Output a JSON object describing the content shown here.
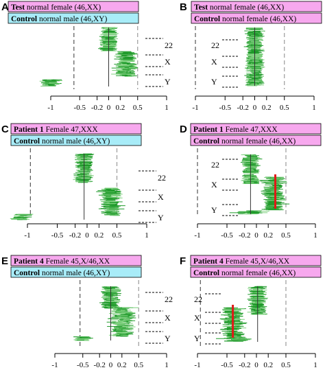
{
  "colors": {
    "pink": "#f7a8ee",
    "cyan": "#a8ecf8",
    "green": "#1f9a2a",
    "green_light": "#7fd07f",
    "red": "#e01818",
    "dash_grey": "#9a9a9a",
    "ink": "#000000"
  },
  "panels": [
    {
      "letter": "A",
      "legend_test_bold": "Test",
      "legend_test_rest": "normal female (46,XX)",
      "legend_ctrl_bold": "Control",
      "legend_ctrl_rest": "normal male (46,XY)",
      "ctrl_color": "cyan",
      "labels": [
        "22",
        "X",
        "Y"
      ],
      "ticks": [
        "-1",
        "-0.5",
        "-0.2",
        "0",
        "0.2",
        "0.5",
        "1"
      ]
    },
    {
      "letter": "B",
      "legend_test_bold": "Test",
      "legend_test_rest": "normal female (46,XX)",
      "legend_ctrl_bold": "Control",
      "legend_ctrl_rest": "normal female (46,XX)",
      "ctrl_color": "pink",
      "labels": [
        "22",
        "X",
        "Y"
      ],
      "ticks": [
        "-1",
        "-0.5",
        "-0.2",
        "0",
        "0.2",
        "0.5",
        "1"
      ]
    },
    {
      "letter": "C",
      "legend_test_bold": "Patient 1",
      "legend_test_rest": "Female 47,XXX",
      "legend_ctrl_bold": "Control",
      "legend_ctrl_rest": "normal male (46,XY)",
      "ctrl_color": "cyan",
      "labels": [
        "22",
        "X",
        "Y"
      ],
      "ticks": [
        "-1",
        "-0.5",
        "-0.2",
        "0",
        "0.2",
        "0.5",
        "1"
      ]
    },
    {
      "letter": "D",
      "legend_test_bold": "Patient 1",
      "legend_test_rest": "Female 47,XXX",
      "legend_ctrl_bold": "Control",
      "legend_ctrl_rest": "normal female (46,XX)",
      "ctrl_color": "pink",
      "labels": [
        "22",
        "X",
        "Y"
      ],
      "ticks": [
        "-1",
        "-0.5",
        "-0.2",
        "0",
        "0.2",
        "0.5",
        "1"
      ]
    },
    {
      "letter": "E",
      "legend_test_bold": "Patient 4",
      "legend_test_rest": "Female 45,X/46,XX",
      "legend_ctrl_bold": "Control",
      "legend_ctrl_rest": "normal male (46,XY)",
      "ctrl_color": "cyan",
      "labels": [
        "22",
        "X",
        "Y"
      ],
      "ticks": [
        "-1",
        "-0.5",
        "-0.2",
        "0",
        "0.2",
        "0.5",
        "1"
      ]
    },
    {
      "letter": "F",
      "legend_test_bold": "Patient 4",
      "legend_test_rest": "Female 45,X/46,XX",
      "legend_ctrl_bold": "Control",
      "legend_ctrl_rest": "normal female (46,XX)",
      "ctrl_color": "pink",
      "labels": [
        "22",
        "X",
        "Y"
      ],
      "ticks": [
        "-1",
        "-0.5",
        "-0.2",
        "0",
        "0.2",
        "0.5",
        "1"
      ]
    }
  ],
  "chart_data": [
    {
      "panel": "A",
      "type": "scatter",
      "xlim": [
        -1,
        1
      ],
      "reference_lines": [
        -0.6,
        0.5
      ],
      "clusters": [
        {
          "label": "22",
          "mean_log2_ratio": 0.0,
          "spread": 0.05
        },
        {
          "label": "X",
          "mean_log2_ratio": 0.3,
          "spread": 0.12
        },
        {
          "label": "Y",
          "mean_log2_ratio": -1.0,
          "spread": 0.1
        }
      ],
      "median_line": null
    },
    {
      "panel": "B",
      "type": "scatter",
      "xlim": [
        -1,
        1
      ],
      "reference_lines": [
        -1.0,
        0.5
      ],
      "clusters": [
        {
          "label": "22",
          "mean_log2_ratio": 0.0,
          "spread": 0.05
        },
        {
          "label": "X",
          "mean_log2_ratio": 0.0,
          "spread": 0.05
        },
        {
          "label": "Y",
          "mean_log2_ratio": 0.0,
          "spread": 0.05
        }
      ],
      "median_line": null
    },
    {
      "panel": "C",
      "type": "scatter",
      "xlim": [
        -1,
        1
      ],
      "reference_lines": [
        -0.95,
        0.5
      ],
      "clusters": [
        {
          "label": "22",
          "mean_log2_ratio": -0.05,
          "spread": 0.06
        },
        {
          "label": "X",
          "mean_log2_ratio": 0.4,
          "spread": 0.12
        },
        {
          "label": "Y",
          "mean_log2_ratio": -1.1,
          "spread": 0.12
        }
      ],
      "median_line": null
    },
    {
      "panel": "D",
      "type": "scatter",
      "xlim": [
        -1,
        1
      ],
      "reference_lines": [
        -1.0,
        0.5
      ],
      "clusters": [
        {
          "label": "22",
          "mean_log2_ratio": -0.1,
          "spread": 0.06
        },
        {
          "label": "X",
          "mean_log2_ratio": 0.3,
          "spread": 0.12
        },
        {
          "label": "Y",
          "mean_log2_ratio": -0.1,
          "spread": 0.2
        }
      ],
      "median_line": 0.32
    },
    {
      "panel": "E",
      "type": "scatter",
      "xlim": [
        -1,
        1
      ],
      "reference_lines": [
        -0.55,
        0.5
      ],
      "clusters": [
        {
          "label": "22",
          "mean_log2_ratio": 0.0,
          "spread": 0.06
        },
        {
          "label": "X",
          "mean_log2_ratio": 0.2,
          "spread": 0.14
        },
        {
          "label": "Y",
          "mean_log2_ratio": -0.5,
          "spread": 0.08
        }
      ],
      "median_line": null
    },
    {
      "panel": "F",
      "type": "scatter",
      "xlim": [
        -1,
        1
      ],
      "reference_lines": [
        -0.95,
        0.5
      ],
      "clusters": [
        {
          "label": "22",
          "mean_log2_ratio": 0.02,
          "spread": 0.06
        },
        {
          "label": "X",
          "mean_log2_ratio": -0.4,
          "spread": 0.14
        },
        {
          "label": "Y",
          "mean_log2_ratio": -0.3,
          "spread": 0.2
        }
      ],
      "median_line": -0.4
    }
  ]
}
